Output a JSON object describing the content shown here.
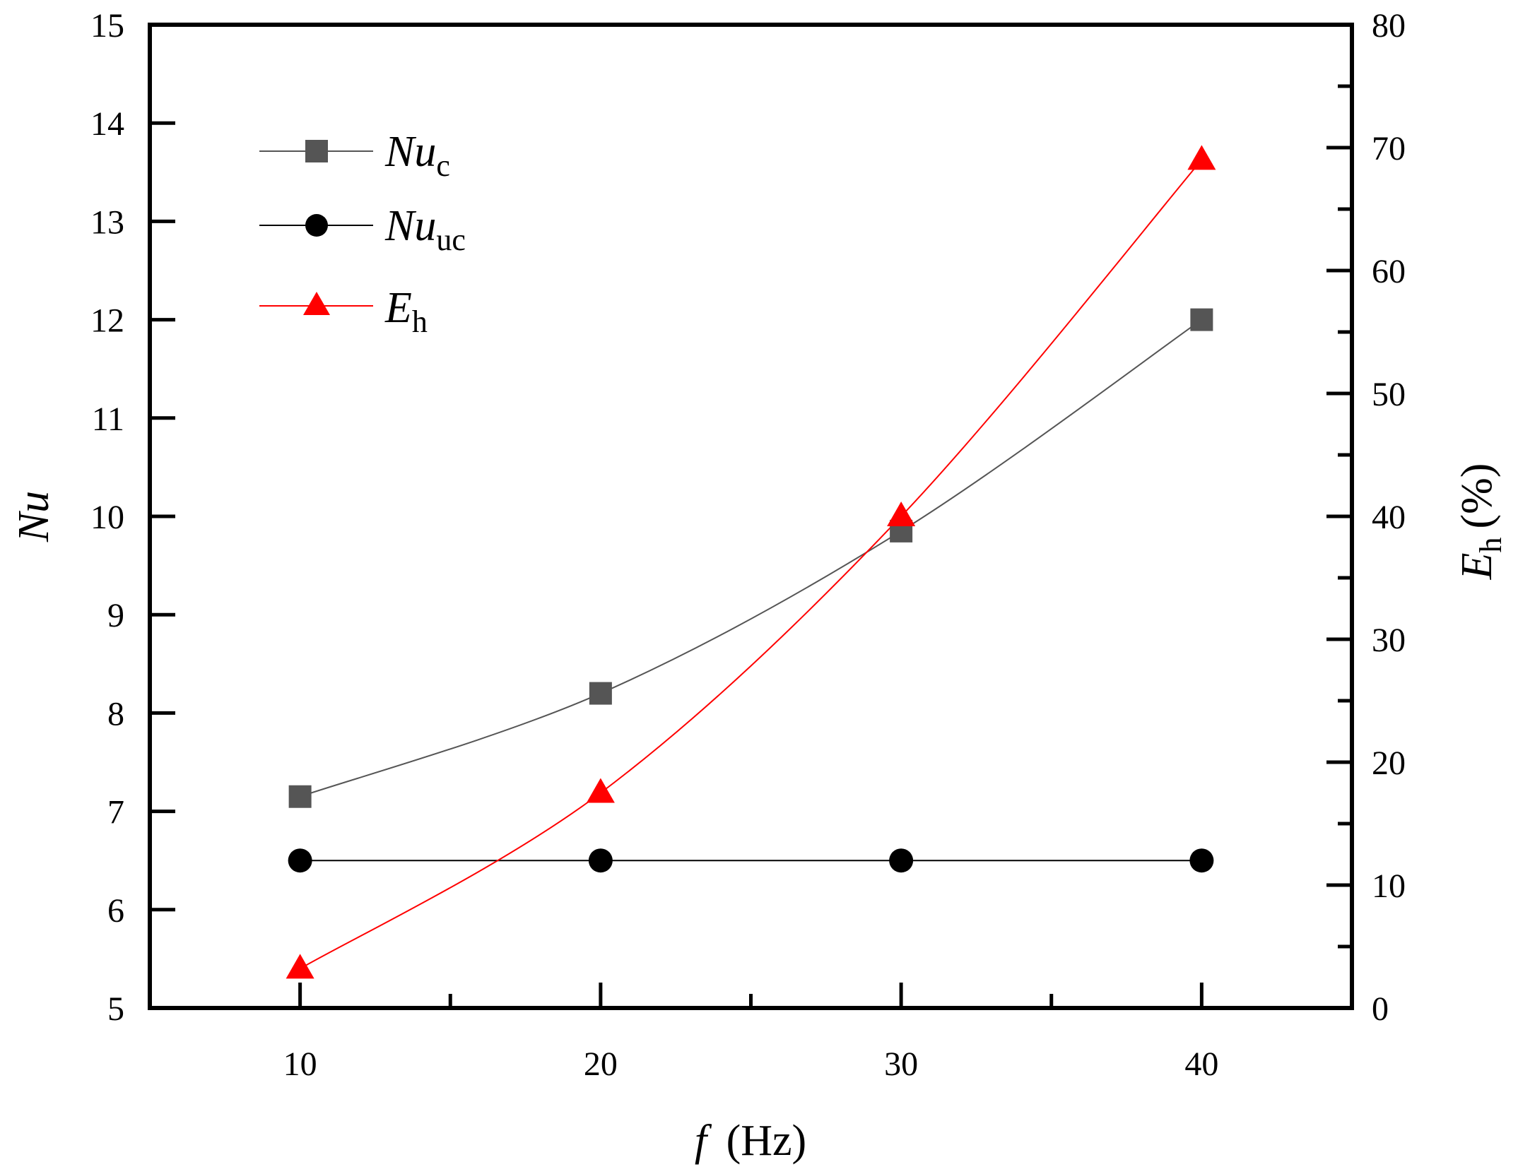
{
  "chart_data": {
    "type": "line",
    "x": [
      10,
      20,
      30,
      40
    ],
    "xlim": [
      5,
      45
    ],
    "xticks": [
      10,
      20,
      30,
      40
    ],
    "xlabel": {
      "italic": "f",
      "rest": "(Hz)"
    },
    "left_axis": {
      "label": "Nu",
      "ylim": [
        5,
        15
      ],
      "ticks": [
        5,
        6,
        7,
        8,
        9,
        10,
        11,
        12,
        13,
        14,
        15
      ]
    },
    "right_axis": {
      "label": {
        "italic": "E",
        "sub": "h",
        "rest": "(%)"
      },
      "ylim": [
        0,
        80
      ],
      "ticks": [
        0,
        10,
        20,
        30,
        40,
        50,
        60,
        70,
        80
      ]
    },
    "series": [
      {
        "name": "Nuc",
        "label_main": "Nu",
        "label_sub": "c",
        "axis": "left",
        "marker": "square",
        "color": "#555555",
        "values": [
          7.15,
          8.2,
          9.85,
          12.0
        ]
      },
      {
        "name": "Nuuc",
        "label_main": "Nu",
        "label_sub": "uc",
        "axis": "left",
        "marker": "circle",
        "color": "#000000",
        "values": [
          6.5,
          6.5,
          6.5,
          6.5
        ]
      },
      {
        "name": "Eh",
        "label_main": "E",
        "label_sub": "h",
        "axis": "right",
        "marker": "triangle",
        "color": "#ff0000",
        "values": [
          3.2,
          17.5,
          40.0,
          69.0
        ]
      }
    ],
    "legend": "top-left"
  }
}
